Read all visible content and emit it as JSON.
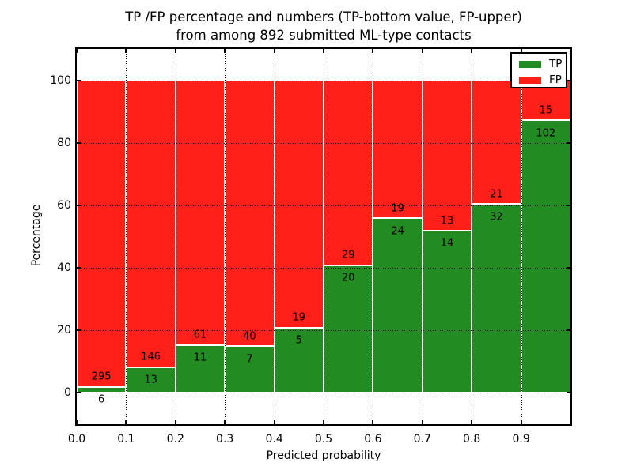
{
  "chart_data": {
    "type": "bar",
    "variant": "stacked-percentage",
    "title_lines": [
      "TP /FP percentage and numbers (TP-bottom value, FP-upper)",
      "from among 892 submitted ML-type contacts"
    ],
    "xlabel": "Predicted probability",
    "ylabel": "Percentage",
    "total_submitted": 892,
    "bin_width": 0.1,
    "bin_starts": [
      0.0,
      0.1,
      0.2,
      0.3,
      0.4,
      0.5,
      0.6,
      0.7,
      0.8,
      0.9
    ],
    "series": [
      {
        "name": "TP",
        "color": "#228B22",
        "counts": [
          6,
          13,
          11,
          7,
          5,
          20,
          24,
          14,
          32,
          102
        ]
      },
      {
        "name": "FP",
        "color": "#FF2119",
        "counts": [
          295,
          146,
          61,
          40,
          19,
          29,
          19,
          13,
          21,
          15
        ]
      }
    ],
    "tp_percent_of_bin": [
      2.0,
      8.2,
      15.3,
      14.9,
      20.8,
      40.8,
      55.8,
      51.9,
      60.4,
      87.2
    ],
    "axes": {
      "xlim": [
        0.0,
        1.0
      ],
      "ylim": [
        -10,
        110
      ],
      "xtick_labels": [
        "0.0",
        "0.1",
        "0.2",
        "0.3",
        "0.4",
        "0.5",
        "0.6",
        "0.7",
        "0.8",
        "0.9"
      ],
      "ytick_values": [
        0,
        20,
        40,
        60,
        80,
        100
      ],
      "grid_style": "dotted"
    },
    "legend": {
      "position": "upper-right",
      "entries": [
        {
          "label": "TP",
          "color": "#228B22"
        },
        {
          "label": "FP",
          "color": "#FF2119"
        }
      ]
    },
    "colors": {
      "tp_green": "#228B22",
      "fp_red": "#FF2119",
      "frame": "#000000",
      "background": "#FFFFFF"
    }
  }
}
